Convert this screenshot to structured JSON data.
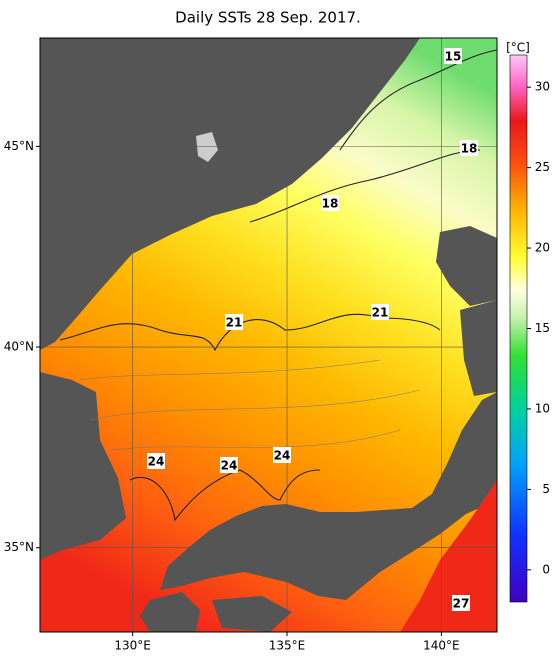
{
  "title": "Daily SSTs 28 Sep. 2017.",
  "map": {
    "xlim": [
      127,
      141.8
    ],
    "ylim": [
      32.9,
      47.7
    ],
    "xticks": [
      {
        "value": 130,
        "label": "130°E"
      },
      {
        "value": 135,
        "label": "135°E"
      },
      {
        "value": 140,
        "label": "140°E"
      }
    ],
    "yticks": [
      {
        "value": 35,
        "label": "35°N"
      },
      {
        "value": 40,
        "label": "40°N"
      },
      {
        "value": 45,
        "label": "45°N"
      }
    ],
    "contour_labels": [
      15,
      18,
      18,
      21,
      21,
      24,
      24,
      24,
      27
    ]
  },
  "colorbar": {
    "unit": "[°C]",
    "lim": [
      -2,
      32
    ],
    "ticks": [
      0,
      5,
      10,
      15,
      20,
      25,
      30
    ]
  }
}
